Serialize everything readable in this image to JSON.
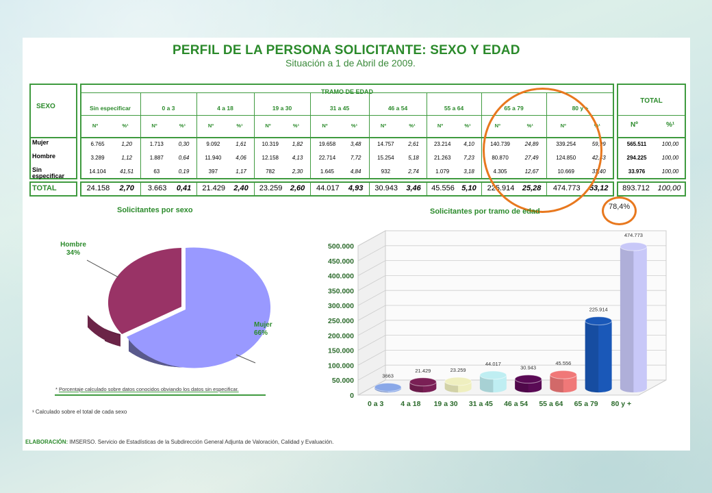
{
  "title": "PERFIL DE LA PERSONA SOLICITANTE: SEXO Y EDAD",
  "subtitle": "Situación a 1 de Abril de 2009.",
  "table": {
    "sexo_header": "SEXO",
    "tramo_header": "TRAMO DE EDAD",
    "total_header": "TOTAL",
    "groups": [
      "Sin especificar",
      "0 a 3",
      "4 a 18",
      "19 a 30",
      "31 a 45",
      "46 a 54",
      "55 a 64",
      "65 a 79",
      "80 y +"
    ],
    "sub_n": "Nº",
    "sub_pct": "%¹",
    "rows": [
      {
        "label": "Mujer",
        "cells": [
          "6.765",
          "1,20",
          "1.713",
          "0,30",
          "9.092",
          "1,61",
          "10.319",
          "1,82",
          "19.658",
          "3,48",
          "14.757",
          "2,61",
          "23.214",
          "4,10",
          "140.739",
          "24,89",
          "339.254",
          "59,99"
        ],
        "total_n": "565.511",
        "total_pct": "100,00"
      },
      {
        "label": "Hombre",
        "cells": [
          "3.289",
          "1,12",
          "1.887",
          "0,64",
          "11.940",
          "4,06",
          "12.158",
          "4,13",
          "22.714",
          "7,72",
          "15.254",
          "5,18",
          "21.263",
          "7,23",
          "80.870",
          "27,49",
          "124.850",
          "42,43"
        ],
        "total_n": "294.225",
        "total_pct": "100,00"
      },
      {
        "label": "Sin especificar",
        "cells": [
          "14.104",
          "41,51",
          "63",
          "0,19",
          "397",
          "1,17",
          "782",
          "2,30",
          "1.645",
          "4,84",
          "932",
          "2,74",
          "1.079",
          "3,18",
          "4.305",
          "12,67",
          "10.669",
          "31,40"
        ],
        "total_n": "33.976",
        "total_pct": "100,00"
      }
    ],
    "total_row": {
      "label": "TOTAL",
      "cells": [
        "24.158",
        "2,70",
        "3.663",
        "0,41",
        "21.429",
        "2,40",
        "23.259",
        "2,60",
        "44.017",
        "4,93",
        "30.943",
        "3,46",
        "45.556",
        "5,10",
        "225.914",
        "25,28",
        "474.773",
        "53,12"
      ],
      "total_n": "893.712",
      "total_pct": "100,00"
    }
  },
  "annotation": "78,4%",
  "pie": {
    "title": "Solicitantes por sexo",
    "hombre_label": "Hombre",
    "hombre_pct": "34%",
    "mujer_label": "Mujer",
    "mujer_pct": "66%",
    "colors": {
      "hombre": "#993366",
      "mujer": "#9999ff"
    }
  },
  "notes": {
    "asterisk": "*",
    "pct_note": "Porcentaje calculado sobre datos conocidos obviando los datos sin especificar.",
    "footnote": "¹ Calculado sobre el total de cada sexo",
    "elaboracion_label": "ELABORACIÓN:",
    "elaboracion_text": "IMSERSO. Servicio de Estadísticas de la Subdirección General Adjunta de Valoración, Calidad y Evaluación."
  },
  "chart_data": [
    {
      "type": "pie",
      "title": "Solicitantes por sexo",
      "categories": [
        "Hombre",
        "Mujer"
      ],
      "values": [
        34,
        66
      ]
    },
    {
      "type": "bar",
      "title": "Solicitantes por tramo de edad",
      "categories": [
        "0 a 3",
        "4 a 18",
        "19 a 30",
        "31 a 45",
        "46 a 54",
        "55 a 64",
        "65 a 79",
        "80 y +"
      ],
      "values": [
        3663,
        21429,
        23259,
        44017,
        30943,
        45556,
        225914,
        474773
      ],
      "value_labels": [
        "3663",
        "21.429",
        "23.259",
        "44.017",
        "30.943",
        "45.556",
        "225.914",
        "474.773"
      ],
      "ylim": [
        0,
        500000
      ],
      "yticks": [
        "0",
        "50.000",
        "100.000",
        "150.000",
        "200.000",
        "250.000",
        "300.000",
        "350.000",
        "400.000",
        "450.000",
        "500.000"
      ],
      "colors": [
        "#8aa8e8",
        "#7a1f55",
        "#efefbf",
        "#bfeef2",
        "#5a0a55",
        "#f07878",
        "#1a58b8",
        "#c8c8f8"
      ],
      "grid": true
    }
  ]
}
